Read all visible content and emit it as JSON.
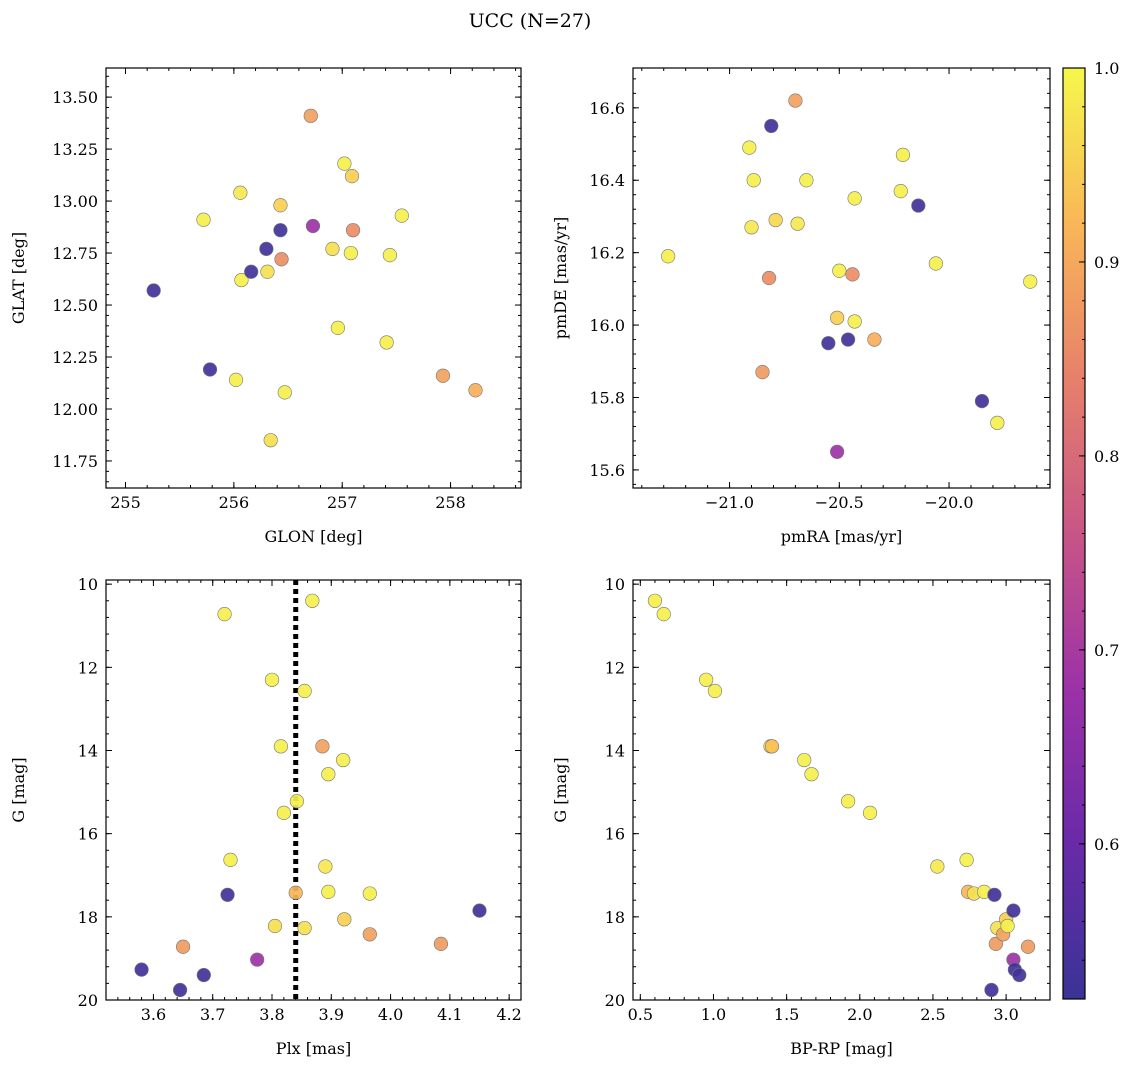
{
  "figure": {
    "title": "UCC (N=27)",
    "colorbar": {
      "range": [
        0.52,
        1.0
      ],
      "ticks": [
        "0.6",
        "0.7",
        "0.8",
        "0.9",
        "1.0"
      ],
      "colormap": "plasma"
    }
  },
  "chart_data": [
    {
      "type": "scatter",
      "name": "sky-position",
      "xlabel": "GLON [deg]",
      "ylabel": "GLAT [deg]",
      "xlim": [
        254.82,
        258.65
      ],
      "ylim": [
        11.62,
        13.64
      ],
      "xticks": [
        "255",
        "256",
        "257",
        "258"
      ],
      "yticks": [
        "11.75",
        "12.00",
        "12.25",
        "12.50",
        "12.75",
        "13.00",
        "13.25",
        "13.50"
      ],
      "points": [
        {
          "x": 255.26,
          "y": 12.57,
          "c": 0.53
        },
        {
          "x": 255.72,
          "y": 12.91,
          "c": 0.99
        },
        {
          "x": 255.78,
          "y": 12.19,
          "c": 0.53
        },
        {
          "x": 256.02,
          "y": 12.14,
          "c": 0.99
        },
        {
          "x": 256.06,
          "y": 13.04,
          "c": 0.98
        },
        {
          "x": 256.07,
          "y": 12.62,
          "c": 0.99
        },
        {
          "x": 256.16,
          "y": 12.66,
          "c": 0.53
        },
        {
          "x": 256.3,
          "y": 12.77,
          "c": 0.53
        },
        {
          "x": 256.31,
          "y": 12.66,
          "c": 0.97
        },
        {
          "x": 256.34,
          "y": 11.85,
          "c": 0.97
        },
        {
          "x": 256.43,
          "y": 12.86,
          "c": 0.53
        },
        {
          "x": 256.43,
          "y": 12.98,
          "c": 0.95
        },
        {
          "x": 256.44,
          "y": 12.72,
          "c": 0.86
        },
        {
          "x": 256.47,
          "y": 12.08,
          "c": 0.99
        },
        {
          "x": 256.71,
          "y": 13.41,
          "c": 0.89
        },
        {
          "x": 256.73,
          "y": 12.88,
          "c": 0.68
        },
        {
          "x": 256.91,
          "y": 12.77,
          "c": 0.97
        },
        {
          "x": 256.96,
          "y": 12.39,
          "c": 0.99
        },
        {
          "x": 257.02,
          "y": 13.18,
          "c": 0.99
        },
        {
          "x": 257.08,
          "y": 12.75,
          "c": 0.99
        },
        {
          "x": 257.09,
          "y": 13.12,
          "c": 0.95
        },
        {
          "x": 257.1,
          "y": 12.86,
          "c": 0.86
        },
        {
          "x": 257.41,
          "y": 12.32,
          "c": 0.99
        },
        {
          "x": 257.44,
          "y": 12.74,
          "c": 0.99
        },
        {
          "x": 257.55,
          "y": 12.93,
          "c": 0.99
        },
        {
          "x": 257.93,
          "y": 12.16,
          "c": 0.89
        },
        {
          "x": 258.23,
          "y": 12.09,
          "c": 0.91
        }
      ]
    },
    {
      "type": "scatter",
      "name": "proper-motion",
      "xlabel": "pmRA [mas/yr]",
      "ylabel": "pmDE [mas/yr]",
      "xlim": [
        -21.44,
        -19.54
      ],
      "ylim": [
        15.55,
        16.71
      ],
      "xticks": [
        "−21.0",
        "−20.5",
        "−20.0"
      ],
      "yticks": [
        "15.6",
        "15.8",
        "16.0",
        "16.2",
        "16.4",
        "16.6"
      ],
      "points": [
        {
          "x": -21.28,
          "y": 16.19,
          "c": 0.99
        },
        {
          "x": -20.91,
          "y": 16.49,
          "c": 0.99
        },
        {
          "x": -20.9,
          "y": 16.27,
          "c": 0.98
        },
        {
          "x": -20.89,
          "y": 16.4,
          "c": 0.99
        },
        {
          "x": -20.85,
          "y": 15.87,
          "c": 0.88
        },
        {
          "x": -20.82,
          "y": 16.13,
          "c": 0.86
        },
        {
          "x": -20.81,
          "y": 16.55,
          "c": 0.53
        },
        {
          "x": -20.79,
          "y": 16.29,
          "c": 0.96
        },
        {
          "x": -20.7,
          "y": 16.62,
          "c": 0.89
        },
        {
          "x": -20.69,
          "y": 16.28,
          "c": 0.98
        },
        {
          "x": -20.65,
          "y": 16.4,
          "c": 0.99
        },
        {
          "x": -20.55,
          "y": 15.95,
          "c": 0.53
        },
        {
          "x": -20.51,
          "y": 15.65,
          "c": 0.68
        },
        {
          "x": -20.51,
          "y": 16.02,
          "c": 0.95
        },
        {
          "x": -20.5,
          "y": 16.15,
          "c": 0.99
        },
        {
          "x": -20.46,
          "y": 15.96,
          "c": 0.53
        },
        {
          "x": -20.44,
          "y": 16.14,
          "c": 0.86
        },
        {
          "x": -20.43,
          "y": 16.01,
          "c": 0.99
        },
        {
          "x": -20.43,
          "y": 16.35,
          "c": 0.99
        },
        {
          "x": -20.34,
          "y": 15.96,
          "c": 0.91
        },
        {
          "x": -20.22,
          "y": 16.37,
          "c": 0.99
        },
        {
          "x": -20.21,
          "y": 16.47,
          "c": 0.99
        },
        {
          "x": -20.14,
          "y": 16.33,
          "c": 0.53
        },
        {
          "x": -20.06,
          "y": 16.17,
          "c": 0.99
        },
        {
          "x": -19.85,
          "y": 15.79,
          "c": 0.53
        },
        {
          "x": -19.78,
          "y": 15.73,
          "c": 0.99
        },
        {
          "x": -19.63,
          "y": 16.12,
          "c": 0.99
        }
      ]
    },
    {
      "type": "scatter",
      "name": "parallax-magnitude",
      "xlabel": "Plx [mas]",
      "ylabel": "G [mag]",
      "xlim": [
        3.52,
        4.22
      ],
      "ylim": [
        20,
        9.9
      ],
      "xticks": [
        "3.6",
        "3.7",
        "3.8",
        "3.9",
        "4.0",
        "4.1",
        "4.2"
      ],
      "yticks": [
        "10",
        "12",
        "14",
        "16",
        "18",
        "20"
      ],
      "vline": 3.84,
      "points": [
        {
          "x": 3.58,
          "y": 19.27,
          "c": 0.53
        },
        {
          "x": 3.645,
          "y": 19.76,
          "c": 0.53
        },
        {
          "x": 3.65,
          "y": 18.72,
          "c": 0.88
        },
        {
          "x": 3.685,
          "y": 19.4,
          "c": 0.53
        },
        {
          "x": 3.72,
          "y": 10.72,
          "c": 0.99
        },
        {
          "x": 3.725,
          "y": 17.47,
          "c": 0.53
        },
        {
          "x": 3.73,
          "y": 16.63,
          "c": 0.99
        },
        {
          "x": 3.775,
          "y": 19.03,
          "c": 0.68
        },
        {
          "x": 3.8,
          "y": 12.3,
          "c": 0.99
        },
        {
          "x": 3.805,
          "y": 18.22,
          "c": 0.97
        },
        {
          "x": 3.815,
          "y": 13.9,
          "c": 0.99
        },
        {
          "x": 3.82,
          "y": 15.5,
          "c": 0.99
        },
        {
          "x": 3.84,
          "y": 17.42,
          "c": 0.92
        },
        {
          "x": 3.842,
          "y": 15.22,
          "c": 0.99
        },
        {
          "x": 3.855,
          "y": 12.57,
          "c": 0.99
        },
        {
          "x": 3.855,
          "y": 18.27,
          "c": 0.97
        },
        {
          "x": 3.868,
          "y": 10.4,
          "c": 0.99
        },
        {
          "x": 3.885,
          "y": 13.9,
          "c": 0.89
        },
        {
          "x": 3.89,
          "y": 16.79,
          "c": 0.98
        },
        {
          "x": 3.895,
          "y": 14.57,
          "c": 0.99
        },
        {
          "x": 3.895,
          "y": 17.4,
          "c": 0.99
        },
        {
          "x": 3.92,
          "y": 14.23,
          "c": 0.99
        },
        {
          "x": 3.922,
          "y": 18.06,
          "c": 0.95
        },
        {
          "x": 3.965,
          "y": 17.44,
          "c": 0.99
        },
        {
          "x": 3.965,
          "y": 18.42,
          "c": 0.89
        },
        {
          "x": 4.085,
          "y": 18.65,
          "c": 0.88
        },
        {
          "x": 4.15,
          "y": 17.85,
          "c": 0.53
        }
      ]
    },
    {
      "type": "scatter",
      "name": "color-magnitude",
      "xlabel": "BP-RP [mag]",
      "ylabel": "G [mag]",
      "xlim": [
        0.45,
        3.3
      ],
      "ylim": [
        20,
        9.9
      ],
      "xticks": [
        "0.5",
        "1.0",
        "1.5",
        "2.0",
        "2.5",
        "3.0"
      ],
      "yticks": [
        "10",
        "12",
        "14",
        "16",
        "18",
        "20"
      ],
      "points": [
        {
          "x": 0.6,
          "y": 10.4,
          "c": 0.99
        },
        {
          "x": 0.66,
          "y": 10.72,
          "c": 0.99
        },
        {
          "x": 0.95,
          "y": 12.3,
          "c": 0.99
        },
        {
          "x": 1.01,
          "y": 12.57,
          "c": 0.99
        },
        {
          "x": 1.39,
          "y": 13.9,
          "c": 0.99
        },
        {
          "x": 1.4,
          "y": 13.9,
          "c": 0.93
        },
        {
          "x": 1.62,
          "y": 14.23,
          "c": 0.99
        },
        {
          "x": 1.67,
          "y": 14.57,
          "c": 0.99
        },
        {
          "x": 1.92,
          "y": 15.22,
          "c": 0.99
        },
        {
          "x": 2.07,
          "y": 15.5,
          "c": 0.99
        },
        {
          "x": 2.53,
          "y": 16.79,
          "c": 0.98
        },
        {
          "x": 2.73,
          "y": 16.63,
          "c": 0.99
        },
        {
          "x": 2.74,
          "y": 17.4,
          "c": 0.92
        },
        {
          "x": 2.78,
          "y": 17.44,
          "c": 0.97
        },
        {
          "x": 2.85,
          "y": 17.4,
          "c": 0.99
        },
        {
          "x": 2.9,
          "y": 19.76,
          "c": 0.53
        },
        {
          "x": 2.92,
          "y": 17.47,
          "c": 0.53
        },
        {
          "x": 2.93,
          "y": 18.65,
          "c": 0.88
        },
        {
          "x": 2.94,
          "y": 18.27,
          "c": 0.97
        },
        {
          "x": 2.98,
          "y": 18.42,
          "c": 0.89
        },
        {
          "x": 3.0,
          "y": 18.06,
          "c": 0.95
        },
        {
          "x": 3.01,
          "y": 18.22,
          "c": 0.99
        },
        {
          "x": 3.05,
          "y": 17.85,
          "c": 0.53
        },
        {
          "x": 3.05,
          "y": 19.03,
          "c": 0.68
        },
        {
          "x": 3.06,
          "y": 19.27,
          "c": 0.53
        },
        {
          "x": 3.09,
          "y": 19.4,
          "c": 0.53
        },
        {
          "x": 3.15,
          "y": 18.72,
          "c": 0.88
        }
      ]
    }
  ]
}
